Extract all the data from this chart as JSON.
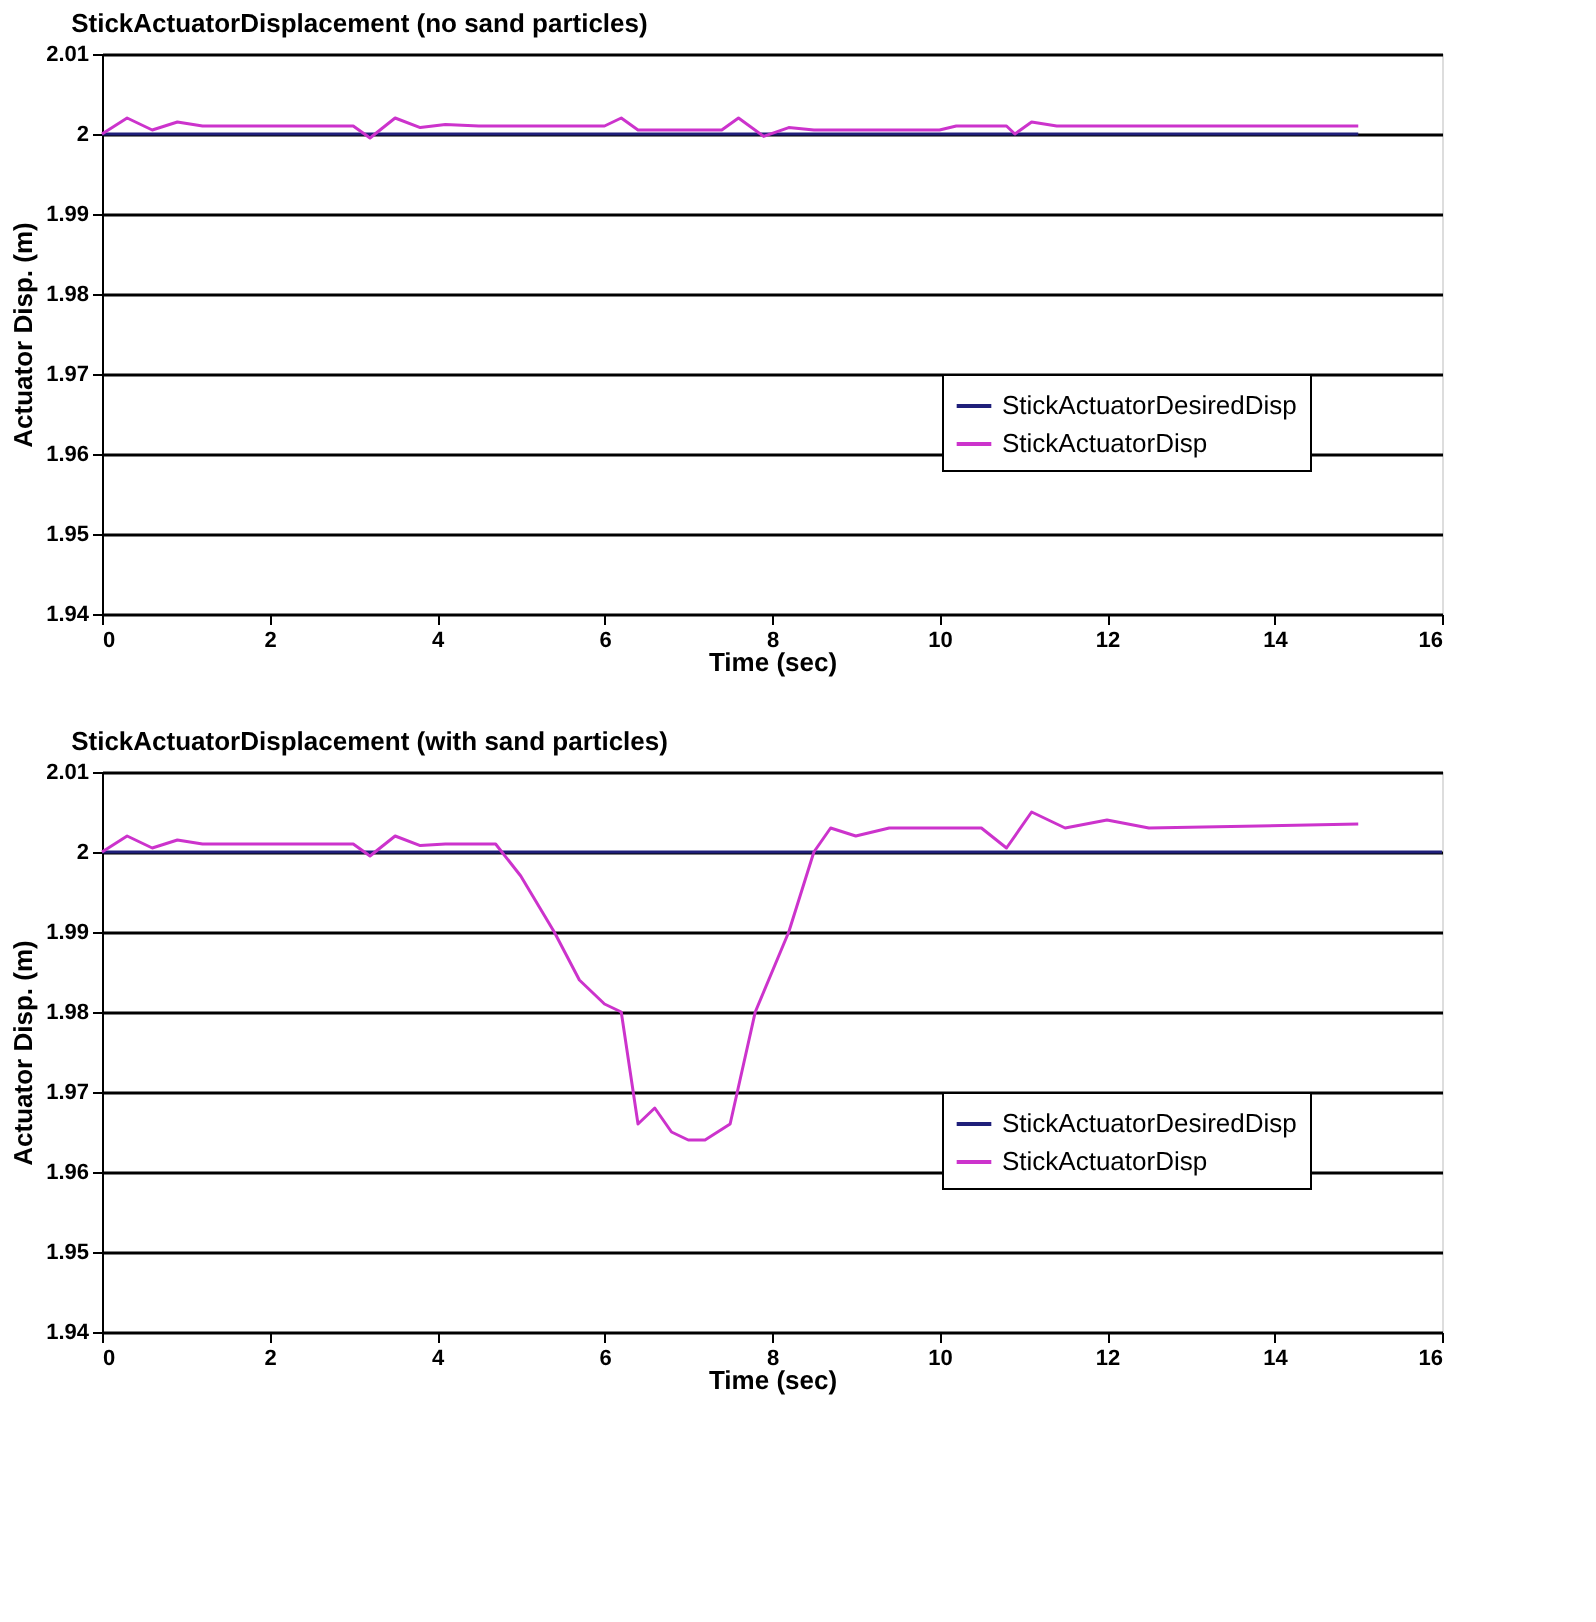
{
  "chart_data": [
    {
      "type": "line",
      "title": "StickActuatorDisplacement (no sand particles)",
      "xlabel": "Time (sec)",
      "ylabel": "Actuator Disp. (m)",
      "xlim": [
        0,
        16
      ],
      "xticks": [
        0,
        2,
        4,
        6,
        8,
        10,
        12,
        14,
        16
      ],
      "ylim": [
        1.94,
        2.01
      ],
      "yticks": [
        1.94,
        1.95,
        1.96,
        1.97,
        1.98,
        1.99,
        2,
        2.01
      ],
      "grid": "y",
      "legend": "right",
      "marker": "none",
      "line_style": "solid",
      "series": [
        {
          "name": "StickActuatorDesiredDisp",
          "color": "#1f1f7a",
          "x": [
            0,
            15
          ],
          "values": [
            2,
            2
          ]
        },
        {
          "name": "StickActuatorDisp",
          "color": "#cc33cc",
          "x": [
            0,
            0.3,
            0.6,
            0.9,
            1.2,
            3.0,
            3.2,
            3.5,
            3.8,
            4.1,
            4.5,
            6.0,
            6.2,
            6.4,
            6.6,
            7.0,
            7.4,
            7.6,
            7.9,
            8.2,
            8.5,
            10,
            10.2,
            10.8,
            10.9,
            11.1,
            11.4,
            15
          ],
          "values": [
            2.0,
            2.002,
            2.0005,
            2.0015,
            2.001,
            2.001,
            1.9995,
            2.002,
            2.0008,
            2.0012,
            2.001,
            2.001,
            2.002,
            2.0005,
            2.0005,
            2.0005,
            2.0005,
            2.002,
            1.9997,
            2.0008,
            2.0005,
            2.0005,
            2.001,
            2.001,
            2.0,
            2.0015,
            2.001,
            2.001
          ]
        }
      ]
    },
    {
      "type": "line",
      "title": "StickActuatorDisplacement (with sand particles)",
      "xlabel": "Time (sec)",
      "ylabel": "Actuator Disp. (m)",
      "xlim": [
        0,
        16
      ],
      "xticks": [
        0,
        2,
        4,
        6,
        8,
        10,
        12,
        14,
        16
      ],
      "ylim": [
        1.94,
        2.01
      ],
      "yticks": [
        1.94,
        1.95,
        1.96,
        1.97,
        1.98,
        1.99,
        2,
        2.01
      ],
      "grid": "y",
      "legend": "right",
      "marker": "none",
      "line_style": "solid",
      "series": [
        {
          "name": "StickActuatorDesiredDisp",
          "color": "#1f1f7a",
          "x": [
            0,
            16
          ],
          "values": [
            2,
            2
          ]
        },
        {
          "name": "StickActuatorDisp",
          "color": "#cc33cc",
          "x": [
            0,
            0.3,
            0.6,
            0.9,
            1.2,
            3.0,
            3.2,
            3.5,
            3.8,
            4.1,
            4.7,
            5.0,
            5.4,
            5.7,
            6.0,
            6.2,
            6.4,
            6.6,
            6.8,
            7.0,
            7.2,
            7.5,
            7.8,
            8.2,
            8.5,
            8.7,
            9.0,
            9.4,
            10,
            10.5,
            10.8,
            11.1,
            11.5,
            12,
            12.5,
            15
          ],
          "values": [
            2.0,
            2.002,
            2.0005,
            2.0015,
            2.001,
            2.001,
            1.9995,
            2.002,
            2.0008,
            2.001,
            2.001,
            1.997,
            1.99,
            1.984,
            1.981,
            1.98,
            1.966,
            1.968,
            1.965,
            1.964,
            1.964,
            1.966,
            1.98,
            1.99,
            2.0,
            2.003,
            2.002,
            2.003,
            2.003,
            2.003,
            2.0005,
            2.005,
            2.003,
            2.004,
            2.003,
            2.0035
          ]
        }
      ]
    }
  ]
}
